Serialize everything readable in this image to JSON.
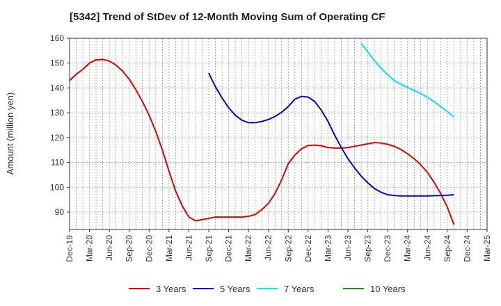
{
  "chart_data": {
    "type": "line",
    "title": "[5342]  Trend of StDev of 12-Month Moving Sum of Operating CF",
    "xlabel": "",
    "ylabel": "Amount (million yen)",
    "ylim": [
      83,
      160
    ],
    "xlim": [
      "2019-12",
      "2025-03"
    ],
    "yticks": [
      90,
      100,
      110,
      120,
      130,
      140,
      150,
      160
    ],
    "xticks": [
      "Dec-19",
      "Mar-20",
      "Jun-20",
      "Sep-20",
      "Dec-20",
      "Mar-21",
      "Jun-21",
      "Sep-21",
      "Dec-21",
      "Mar-22",
      "Jun-22",
      "Sep-22",
      "Dec-22",
      "Mar-23",
      "Jun-23",
      "Sep-23",
      "Dec-23",
      "Mar-24",
      "Jun-24",
      "Sep-24",
      "Dec-24",
      "Mar-25"
    ],
    "grid": true,
    "legend_position": "bottom",
    "series": [
      {
        "name": "3 Years",
        "color": "#e00000",
        "points": [
          [
            "2019-12",
            143
          ],
          [
            "2020-01",
            145.5
          ],
          [
            "2020-02",
            147.5
          ],
          [
            "2020-03",
            150
          ],
          [
            "2020-04",
            151.3
          ],
          [
            "2020-05",
            151.5
          ],
          [
            "2020-06",
            150.8
          ],
          [
            "2020-07",
            149.2
          ],
          [
            "2020-08",
            146.8
          ],
          [
            "2020-09",
            143.5
          ],
          [
            "2020-10",
            139.3
          ],
          [
            "2020-11",
            134.5
          ],
          [
            "2020-12",
            129
          ],
          [
            "2021-01",
            122.5
          ],
          [
            "2021-02",
            115
          ],
          [
            "2021-03",
            106.5
          ],
          [
            "2021-04",
            98.5
          ],
          [
            "2021-05",
            92.5
          ],
          [
            "2021-06",
            88
          ],
          [
            "2021-07",
            86.5
          ],
          [
            "2021-08",
            87
          ],
          [
            "2021-09",
            87.5
          ],
          [
            "2021-10",
            88
          ],
          [
            "2021-11",
            88
          ],
          [
            "2021-12",
            88
          ],
          [
            "2022-01",
            88
          ],
          [
            "2022-02",
            88
          ],
          [
            "2022-03",
            88.3
          ],
          [
            "2022-04",
            89
          ],
          [
            "2022-05",
            91
          ],
          [
            "2022-06",
            93.5
          ],
          [
            "2022-07",
            97.5
          ],
          [
            "2022-08",
            103
          ],
          [
            "2022-09",
            109.5
          ],
          [
            "2022-10",
            113
          ],
          [
            "2022-11",
            115.5
          ],
          [
            "2022-12",
            116.8
          ],
          [
            "2023-01",
            117
          ],
          [
            "2023-02",
            116.7
          ],
          [
            "2023-03",
            116
          ],
          [
            "2023-04",
            115.8
          ],
          [
            "2023-05",
            115.8
          ],
          [
            "2023-06",
            116
          ],
          [
            "2023-07",
            116.5
          ],
          [
            "2023-08",
            117
          ],
          [
            "2023-09",
            117.5
          ],
          [
            "2023-10",
            118
          ],
          [
            "2023-11",
            117.8
          ],
          [
            "2023-12",
            117.3
          ],
          [
            "2024-01",
            116.5
          ],
          [
            "2024-02",
            115.2
          ],
          [
            "2024-03",
            113.5
          ],
          [
            "2024-04",
            111.5
          ],
          [
            "2024-05",
            109
          ],
          [
            "2024-06",
            106
          ],
          [
            "2024-07",
            102
          ],
          [
            "2024-08",
            97.5
          ],
          [
            "2024-09",
            92
          ],
          [
            "2024-10",
            85
          ]
        ]
      },
      {
        "name": "5 Years",
        "color": "#0000cc",
        "points": [
          [
            "2021-09",
            146
          ],
          [
            "2021-10",
            140.5
          ],
          [
            "2021-11",
            136
          ],
          [
            "2021-12",
            132
          ],
          [
            "2022-01",
            129
          ],
          [
            "2022-02",
            127
          ],
          [
            "2022-03",
            126
          ],
          [
            "2022-04",
            126
          ],
          [
            "2022-05",
            126.5
          ],
          [
            "2022-06",
            127.3
          ],
          [
            "2022-07",
            128.5
          ],
          [
            "2022-08",
            130.2
          ],
          [
            "2022-09",
            132.5
          ],
          [
            "2022-10",
            135.5
          ],
          [
            "2022-11",
            136.6
          ],
          [
            "2022-12",
            136.3
          ],
          [
            "2023-01",
            134.5
          ],
          [
            "2023-02",
            131
          ],
          [
            "2023-03",
            126.5
          ],
          [
            "2023-04",
            121
          ],
          [
            "2023-05",
            116
          ],
          [
            "2023-06",
            111.5
          ],
          [
            "2023-07",
            107.8
          ],
          [
            "2023-08",
            104.5
          ],
          [
            "2023-09",
            101.8
          ],
          [
            "2023-10",
            99.5
          ],
          [
            "2023-11",
            98
          ],
          [
            "2023-12",
            97
          ],
          [
            "2024-01",
            96.7
          ],
          [
            "2024-02",
            96.5
          ],
          [
            "2024-03",
            96.5
          ],
          [
            "2024-04",
            96.5
          ],
          [
            "2024-05",
            96.5
          ],
          [
            "2024-06",
            96.5
          ],
          [
            "2024-07",
            96.6
          ],
          [
            "2024-08",
            96.7
          ],
          [
            "2024-09",
            96.8
          ],
          [
            "2024-10",
            97
          ]
        ]
      },
      {
        "name": "7 Years",
        "color": "#00e5ee",
        "points": [
          [
            "2023-08",
            158
          ],
          [
            "2023-09",
            154.5
          ],
          [
            "2023-10",
            151
          ],
          [
            "2023-11",
            148
          ],
          [
            "2023-12",
            145.3
          ],
          [
            "2024-01",
            143
          ],
          [
            "2024-02",
            141.5
          ],
          [
            "2024-03",
            140.2
          ],
          [
            "2024-04",
            139
          ],
          [
            "2024-05",
            137.7
          ],
          [
            "2024-06",
            136.2
          ],
          [
            "2024-07",
            134.5
          ],
          [
            "2024-08",
            132.5
          ],
          [
            "2024-09",
            130.5
          ],
          [
            "2024-10",
            128.3
          ]
        ]
      },
      {
        "name": "10 Years",
        "color": "#228b22",
        "points": []
      }
    ]
  }
}
